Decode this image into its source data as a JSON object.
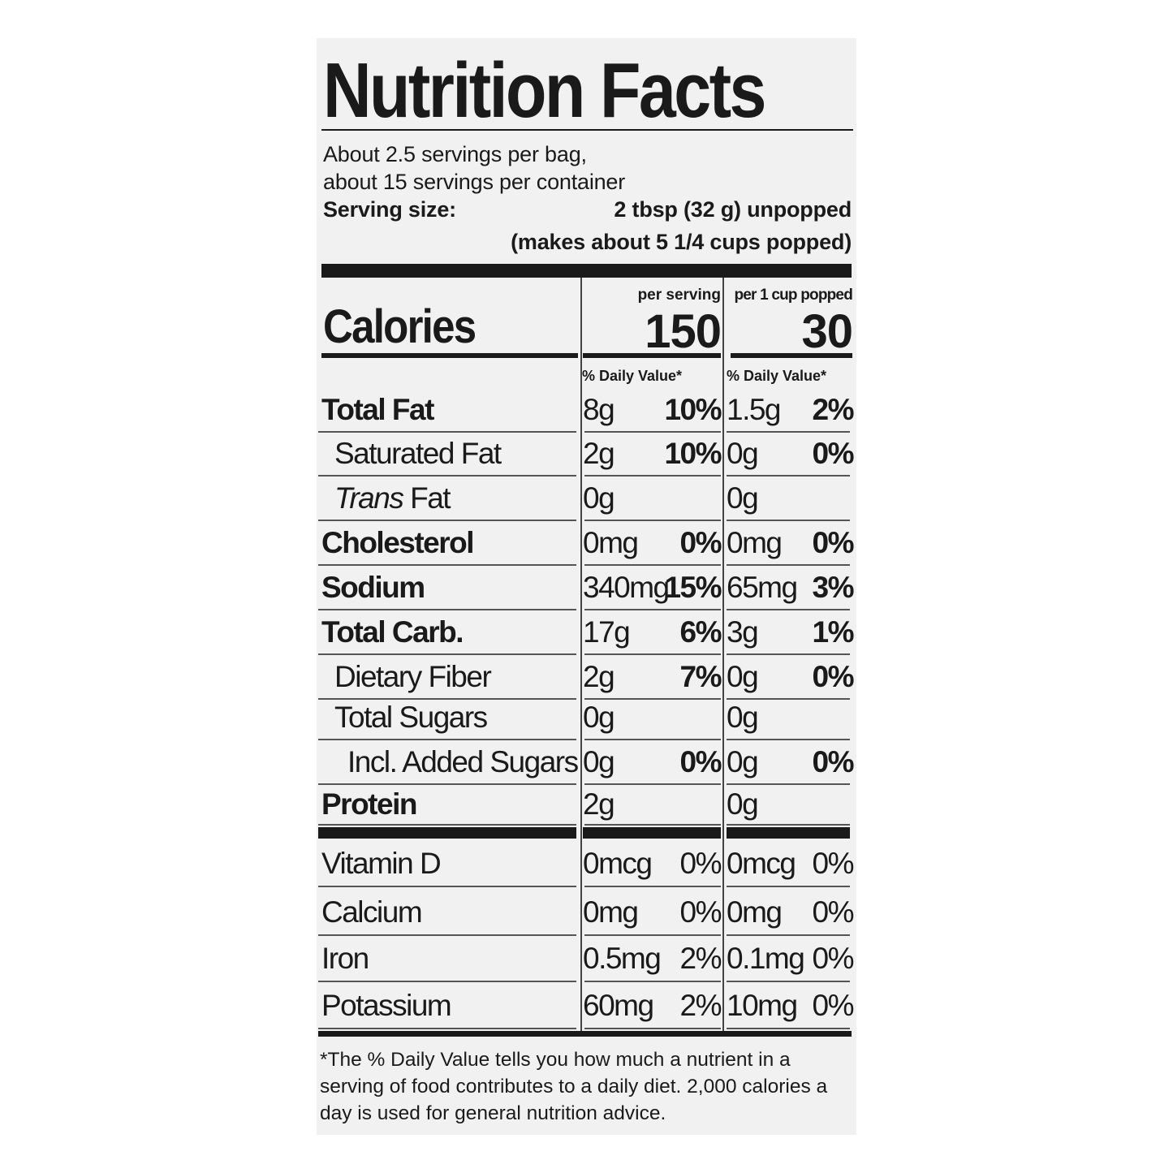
{
  "title": "Nutrition Facts",
  "servings": {
    "line1": "About 2.5 servings per bag,",
    "line2": "about 15 servings per container",
    "size_label": "Serving size:",
    "size_value": "2 tbsp (32 g) unpopped",
    "size_note": "(makes about 5 1/4 cups popped)"
  },
  "calories": {
    "label": "Calories",
    "col1_header": "per serving",
    "col2_header": "per 1 cup popped",
    "col1_value": "150",
    "col2_value": "30"
  },
  "dv_header": {
    "col1": "% Daily Value*",
    "col2": "% Daily Value*"
  },
  "nutrients": [
    {
      "name": "Total Fat",
      "bold": true,
      "indent": 0,
      "a1": "8g",
      "p1": "10%",
      "a2": "1.5g",
      "p2": "2%"
    },
    {
      "name": "Saturated Fat",
      "bold": false,
      "indent": 1,
      "a1": "2g",
      "p1": "10%",
      "a2": "0g",
      "p2": "0%"
    },
    {
      "name_italic": "Trans",
      "name": " Fat",
      "bold": false,
      "indent": 1,
      "a1": "0g",
      "p1": "",
      "a2": "0g",
      "p2": ""
    },
    {
      "name": "Cholesterol",
      "bold": true,
      "indent": 0,
      "a1": "0mg",
      "p1": "0%",
      "a2": "0mg",
      "p2": "0%"
    },
    {
      "name": "Sodium",
      "bold": true,
      "indent": 0,
      "a1": "340mg",
      "p1": "15%",
      "a2": "65mg",
      "p2": "3%"
    },
    {
      "name": "Total Carb.",
      "bold": true,
      "indent": 0,
      "a1": "17g",
      "p1": "6%",
      "a2": "3g",
      "p2": "1%"
    },
    {
      "name": "Dietary Fiber",
      "bold": false,
      "indent": 1,
      "a1": "2g",
      "p1": "7%",
      "a2": "0g",
      "p2": "0%"
    },
    {
      "name": "Total Sugars",
      "bold": false,
      "indent": 1,
      "a1": "0g",
      "p1": "",
      "a2": "0g",
      "p2": ""
    },
    {
      "name": "Incl. Added Sugars",
      "bold": false,
      "indent": 2,
      "a1": "0g",
      "p1": "0%",
      "a2": "0g",
      "p2": "0%"
    },
    {
      "name": "Protein",
      "bold": true,
      "indent": 0,
      "a1": "2g",
      "p1": "",
      "a2": "0g",
      "p2": ""
    }
  ],
  "vitamins": [
    {
      "name": "Vitamin D",
      "a1": "0mcg",
      "p1": "0%",
      "a2": "0mcg",
      "p2": "0%"
    },
    {
      "name": "Calcium",
      "a1": "0mg",
      "p1": "0%",
      "a2": "0mg",
      "p2": "0%"
    },
    {
      "name": "Iron",
      "a1": "0.5mg",
      "p1": "2%",
      "a2": "0.1mg",
      "p2": "0%"
    },
    {
      "name": "Potassium",
      "a1": "60mg",
      "p1": "2%",
      "a2": "10mg",
      "p2": "0%"
    }
  ],
  "footnote": "*The % Daily Value tells you how much a nutrient in a serving of food contributes to a daily diet. 2,000 calories a day is used for general nutrition advice."
}
